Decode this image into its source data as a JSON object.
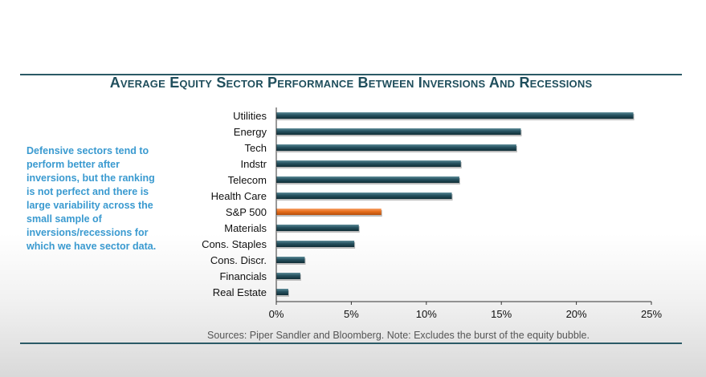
{
  "title": "Average Equity Sector Performance Between Inversions And Recessions",
  "side_note": "Defensive sectors tend to perform better after inversions, but the ranking is not perfect and there is large variability across the small sample of inversions/recessions for which we have sector data.",
  "sources": "Sources: Piper Sandler and Bloomberg. Note: Excludes the burst of the equity bubble.",
  "colors": {
    "bar": "#1f4e5c",
    "highlight": "#e86e1c",
    "rule": "#2b5a66",
    "note": "#3a9ad0"
  },
  "chart_data": {
    "type": "bar",
    "orientation": "horizontal",
    "title": "Average Equity Sector Performance Between Inversions And Recessions",
    "xlabel": "",
    "ylabel": "",
    "categories": [
      "Utilities",
      "Energy",
      "Tech",
      "Indstr",
      "Telecom",
      "Health Care",
      "S&P 500",
      "Materials",
      "Cons. Staples",
      "Cons. Discr.",
      "Financials",
      "Real Estate"
    ],
    "values": [
      23.8,
      16.3,
      16.0,
      12.3,
      12.2,
      11.7,
      7.0,
      5.5,
      5.2,
      1.9,
      1.6,
      0.8
    ],
    "highlight": "S&P 500",
    "xlim": [
      0,
      25
    ],
    "xticks": [
      0,
      5,
      10,
      15,
      20,
      25
    ],
    "xtick_labels": [
      "0%",
      "5%",
      "10%",
      "15%",
      "20%",
      "25%"
    ],
    "grid": false,
    "legend": "none"
  }
}
